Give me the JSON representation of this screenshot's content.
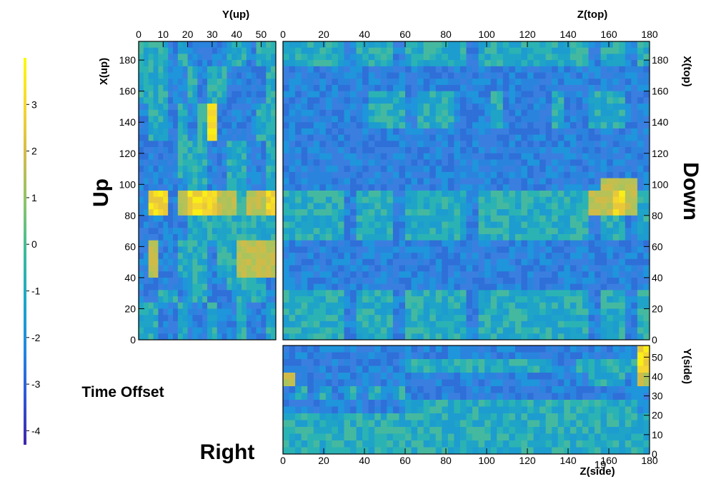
{
  "palette": [
    "#3d26a8",
    "#2e58d8",
    "#1f8ae0",
    "#19a9c8",
    "#3bbc9a",
    "#8cc46a",
    "#d3bc4a",
    "#f6d630",
    "#f9fb0e"
  ],
  "labels": {
    "up": "Up",
    "down": "Down",
    "right": "Right",
    "time_offset": "Time Offset",
    "page_number": "19"
  },
  "chart_data": [
    {
      "name": "Up",
      "type": "heatmap",
      "xlabel": "Y(up)",
      "ylabel": "X(up)",
      "xlim": [
        0,
        56
      ],
      "ylim": [
        0,
        192
      ],
      "xticks": [
        0,
        10,
        20,
        30,
        40,
        50
      ],
      "yticks": [
        0,
        20,
        40,
        60,
        80,
        100,
        120,
        140,
        160,
        180
      ],
      "cols": 14,
      "rows": 24,
      "z_pattern": [
        "11101000011011",
        "11101000011011",
        "11100101100001",
        "11100101100001",
        "11100101100001",
        "01101013000011",
        "01101013000011",
        "01101013000011",
        "00001110011001",
        "00001110011001",
        "00001110011001",
        "00000110011001",
        "03302333221223",
        "03302333221223",
        "00000111111111",
        "00000111111111",
        "02001110112222",
        "02001110112222",
        "02001110112222",
        "00000110011110",
        "00110110001110",
        "11001001001001",
        "11001001001001",
        "11001001001001"
      ]
    },
    {
      "name": "Down",
      "type": "heatmap",
      "xlabel": "Z(top)",
      "ylabel": "X(top)",
      "xlim": [
        0,
        180
      ],
      "ylim": [
        0,
        192
      ],
      "xticks": [
        0,
        20,
        40,
        60,
        80,
        100,
        120,
        140,
        160,
        180
      ],
      "yticks": [
        0,
        20,
        40,
        60,
        80,
        100,
        120,
        140,
        160,
        180
      ],
      "cols": 30,
      "rows": 24,
      "z_pattern": [
        "111110111011111011111111101101",
        "111110111011111011111111101101",
        "000000000000000000000000000000",
        "000000000000000000000000000000",
        "000000011101110001000010011100",
        "000000011101110001000010011100",
        "000000011101110001000010011100",
        "000000000000000000000000000000",
        "000000000000000000000000000000",
        "000000000000000000000000000000",
        "000000000000000000000000000000",
        "000000000000000000000000002220",
        "111110111011111011111111122321",
        "111110111011111011111111122321",
        "111110111011111011111111101101",
        "111110111011111011111111101101",
        "000000000000000000000000000000",
        "000000000000000000000000000000",
        "000000000000000000000000000000",
        "000000000000000000000000000000",
        "111110111011111011111111101101",
        "111110111011111011111111101101",
        "111110111011111011111111101101",
        "111110111011111011111111101101"
      ]
    },
    {
      "name": "Right",
      "type": "heatmap",
      "xlabel": "Z(side)",
      "ylabel": "Y(side)",
      "xlim": [
        0,
        180
      ],
      "ylim": [
        0,
        56
      ],
      "xticks": [
        0,
        20,
        40,
        60,
        80,
        100,
        120,
        140,
        160,
        180
      ],
      "yticks": [
        0,
        10,
        20,
        30,
        40,
        50
      ],
      "cols": 30,
      "rows": 8,
      "z_pattern": [
        "000000000000000000000000000003",
        "000000000011111111111100111113",
        "200000000000000000000000011102",
        "010101010100000000000000000000",
        "000000000011111111111111111110",
        "111111111111111111111111111111",
        "111111111111111111111111111111",
        "111111111111111111111111111111"
      ]
    }
  ],
  "colorbar": {
    "min": -4.3,
    "max": 4.0,
    "ticks": [
      -4,
      -3,
      -2,
      -1,
      0,
      1,
      2,
      3
    ],
    "tick_labels": [
      "-4",
      "-3",
      "-2",
      "-1",
      "0",
      "1",
      "2",
      "3"
    ]
  }
}
